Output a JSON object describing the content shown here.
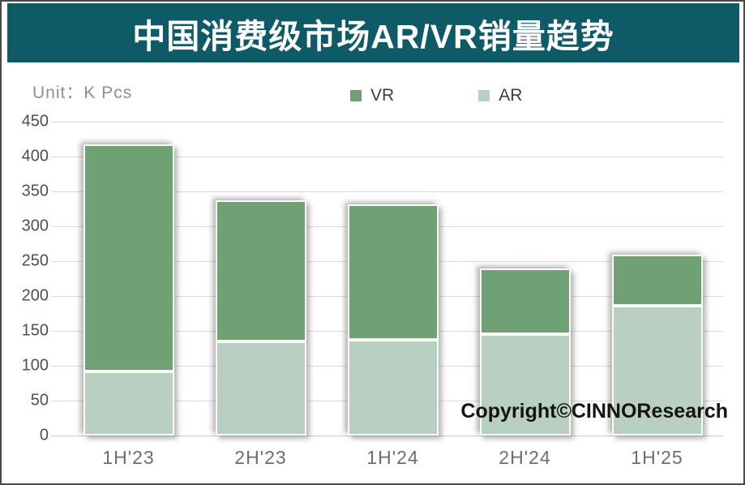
{
  "header": {
    "title": "中国消费级市场AR/VR销量趋势",
    "background_color": "#0E5A66",
    "text_color": "#ffffff"
  },
  "unit_label": "Unit：K Pcs",
  "legend": [
    {
      "label": "VR",
      "color": "#6FA174"
    },
    {
      "label": "AR",
      "color": "#B9CFC2"
    }
  ],
  "watermark": "Copyright©CINNOResearch",
  "chart_data": {
    "type": "bar",
    "stacked": true,
    "title": "中国消费级市场AR/VR销量趋势",
    "unit": "K Pcs",
    "categories": [
      "1H'23",
      "2H'23",
      "1H'24",
      "2H'24",
      "1H'25"
    ],
    "series": [
      {
        "name": "AR",
        "color": "#B9CFC2",
        "values": [
          92,
          135,
          137,
          145,
          186
        ]
      },
      {
        "name": "VR",
        "color": "#6FA174",
        "values": [
          326,
          202,
          195,
          94,
          73
        ]
      }
    ],
    "totals": [
      418,
      337,
      332,
      239,
      259
    ],
    "xlabel": "",
    "ylabel": "K Pcs",
    "ylim": [
      0,
      450
    ],
    "ytick_step": 50,
    "grid": true,
    "legend_position": "top"
  }
}
